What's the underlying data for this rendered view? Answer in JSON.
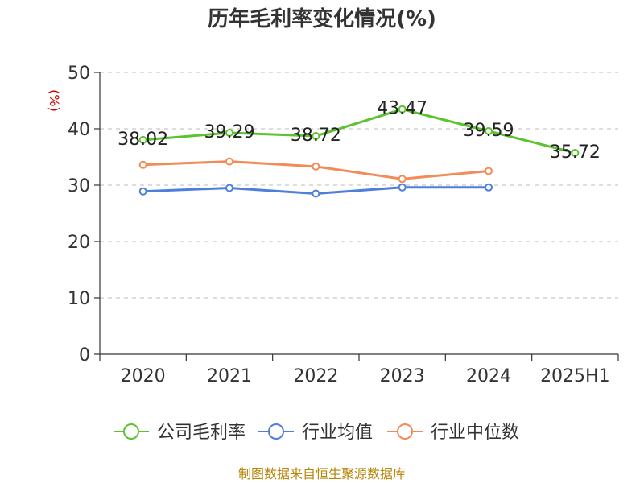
{
  "chart_data": {
    "type": "line",
    "title": "历年毛利率变化情况(%)",
    "ylabel": "(%)",
    "categories": [
      "2020",
      "2021",
      "2022",
      "2023",
      "2024",
      "2025H1"
    ],
    "ylim": [
      0,
      50
    ],
    "yticks": [
      0,
      10,
      20,
      30,
      40,
      50
    ],
    "grid": "horizontal dashed",
    "legend_position": "bottom",
    "series": [
      {
        "name": "公司毛利率",
        "color": "#5cc32f",
        "values": [
          38.02,
          39.29,
          38.72,
          43.47,
          39.59,
          35.72
        ],
        "labels": [
          "38.02",
          "39.29",
          "38.72",
          "43.47",
          "39.59",
          "35.72"
        ]
      },
      {
        "name": "行业均值",
        "color": "#4f7fdd",
        "values": [
          28.9,
          29.5,
          28.5,
          29.6,
          29.6,
          null
        ]
      },
      {
        "name": "行业中位数",
        "color": "#f28b56",
        "values": [
          33.6,
          34.2,
          33.3,
          31.1,
          32.5,
          null
        ]
      }
    ]
  },
  "source": "制图数据来自恒生聚源数据库"
}
